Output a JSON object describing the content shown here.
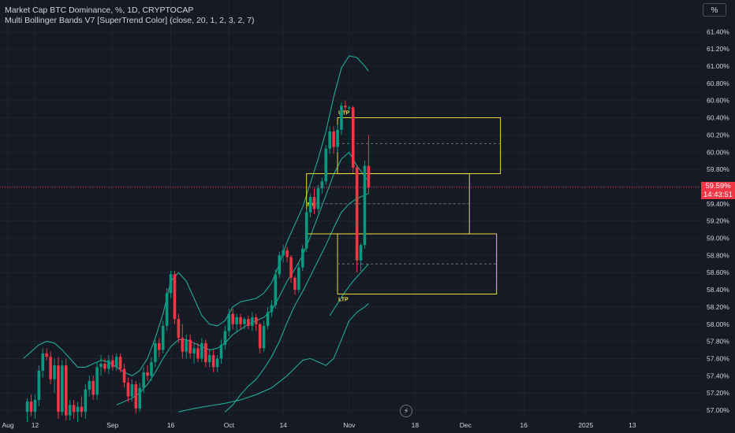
{
  "legend": {
    "title": "Market Cap BTC Dominance, %, 1D, CRYPTOCAP",
    "indicator": "Multi Bollinger Bands V7 [SuperTrend Color] (close, 20, 1, 2, 3, 2, 7)"
  },
  "toolbar": {
    "scale_button": "%"
  },
  "price_tag": {
    "price": "59.59%",
    "countdown": "14:43:51"
  },
  "colors": {
    "background": "#161a25",
    "up": "#089981",
    "down": "#f23645",
    "band": "#22ab94",
    "zone": "#e8d83a",
    "grid": "#1f2430",
    "axis_text": "#d1d4dc"
  },
  "icons": {
    "bottom": "lightning-icon"
  },
  "chart_data": {
    "type": "candlestick",
    "title": "Market Cap BTC Dominance, %, 1D, CRYPTOCAP",
    "y_unit": "%",
    "ylim": [
      56.95,
      61.5
    ],
    "y_ticks": [
      57.0,
      57.2,
      57.4,
      57.6,
      57.8,
      58.0,
      58.2,
      58.4,
      58.6,
      58.8,
      59.0,
      59.2,
      59.4,
      59.6,
      59.8,
      60.0,
      60.2,
      60.4,
      60.6,
      60.8,
      61.0,
      61.2,
      61.4
    ],
    "y_tick_labels": [
      "57.00%",
      "57.20%",
      "57.40%",
      "57.60%",
      "57.80%",
      "58.00%",
      "58.20%",
      "58.40%",
      "58.60%",
      "58.80%",
      "59.00%",
      "59.20%",
      "59.40%",
      "59.60%",
      "59.80%",
      "60.00%",
      "60.20%",
      "60.40%",
      "60.60%",
      "60.80%",
      "61.00%",
      "61.20%",
      "61.40%"
    ],
    "x_ticks": [
      {
        "label": "Aug",
        "day": 0
      },
      {
        "label": "12",
        "day": 7
      },
      {
        "label": "Sep",
        "day": 27
      },
      {
        "label": "16",
        "day": 42
      },
      {
        "label": "Oct",
        "day": 57
      },
      {
        "label": "14",
        "day": 71
      },
      {
        "label": "Nov",
        "day": 88
      },
      {
        "label": "18",
        "day": 105
      },
      {
        "label": "Dec",
        "day": 118
      },
      {
        "label": "16",
        "day": 133
      },
      {
        "label": "2025",
        "day": 149
      },
      {
        "label": "13",
        "day": 161
      }
    ],
    "candles": [
      {
        "day": 5,
        "o": 56.98,
        "h": 57.14,
        "l": 56.86,
        "c": 57.1
      },
      {
        "day": 6,
        "o": 57.1,
        "h": 57.18,
        "l": 56.93,
        "c": 56.98
      },
      {
        "day": 7,
        "o": 56.98,
        "h": 57.18,
        "l": 56.9,
        "c": 57.12
      },
      {
        "day": 8,
        "o": 57.12,
        "h": 57.52,
        "l": 57.05,
        "c": 57.46
      },
      {
        "day": 9,
        "o": 57.46,
        "h": 57.72,
        "l": 57.38,
        "c": 57.66
      },
      {
        "day": 10,
        "o": 57.66,
        "h": 57.72,
        "l": 57.58,
        "c": 57.62
      },
      {
        "day": 11,
        "o": 57.62,
        "h": 57.68,
        "l": 57.3,
        "c": 57.36
      },
      {
        "day": 12,
        "o": 57.36,
        "h": 57.6,
        "l": 57.2,
        "c": 57.52
      },
      {
        "day": 13,
        "o": 57.52,
        "h": 57.62,
        "l": 56.9,
        "c": 56.98
      },
      {
        "day": 14,
        "o": 56.98,
        "h": 57.58,
        "l": 56.94,
        "c": 57.52
      },
      {
        "day": 15,
        "o": 57.52,
        "h": 57.6,
        "l": 56.88,
        "c": 56.94
      },
      {
        "day": 16,
        "o": 56.94,
        "h": 57.12,
        "l": 56.88,
        "c": 57.06
      },
      {
        "day": 17,
        "o": 57.06,
        "h": 57.12,
        "l": 56.9,
        "c": 56.98
      },
      {
        "day": 18,
        "o": 56.98,
        "h": 57.1,
        "l": 56.86,
        "c": 57.04
      },
      {
        "day": 19,
        "o": 57.04,
        "h": 57.16,
        "l": 56.92,
        "c": 56.98
      },
      {
        "day": 20,
        "o": 56.98,
        "h": 57.3,
        "l": 56.9,
        "c": 57.24
      },
      {
        "day": 21,
        "o": 57.24,
        "h": 57.4,
        "l": 57.16,
        "c": 57.34
      },
      {
        "day": 22,
        "o": 57.34,
        "h": 57.4,
        "l": 57.12,
        "c": 57.18
      },
      {
        "day": 23,
        "o": 57.18,
        "h": 57.56,
        "l": 57.12,
        "c": 57.5
      },
      {
        "day": 24,
        "o": 57.5,
        "h": 57.64,
        "l": 57.4,
        "c": 57.54
      },
      {
        "day": 25,
        "o": 57.54,
        "h": 57.6,
        "l": 57.44,
        "c": 57.48
      },
      {
        "day": 26,
        "o": 57.48,
        "h": 57.64,
        "l": 57.42,
        "c": 57.58
      },
      {
        "day": 27,
        "o": 57.58,
        "h": 57.64,
        "l": 57.46,
        "c": 57.5
      },
      {
        "day": 28,
        "o": 57.5,
        "h": 57.66,
        "l": 57.46,
        "c": 57.62
      },
      {
        "day": 29,
        "o": 57.62,
        "h": 57.66,
        "l": 57.44,
        "c": 57.48
      },
      {
        "day": 30,
        "o": 57.48,
        "h": 57.54,
        "l": 57.26,
        "c": 57.32
      },
      {
        "day": 31,
        "o": 57.32,
        "h": 57.38,
        "l": 57.1,
        "c": 57.16
      },
      {
        "day": 32,
        "o": 57.16,
        "h": 57.36,
        "l": 57.1,
        "c": 57.3
      },
      {
        "day": 33,
        "o": 57.3,
        "h": 57.34,
        "l": 56.96,
        "c": 57.02
      },
      {
        "day": 34,
        "o": 57.02,
        "h": 57.32,
        "l": 56.98,
        "c": 57.26
      },
      {
        "day": 35,
        "o": 57.26,
        "h": 57.5,
        "l": 57.2,
        "c": 57.44
      },
      {
        "day": 36,
        "o": 57.44,
        "h": 57.52,
        "l": 57.34,
        "c": 57.4
      },
      {
        "day": 37,
        "o": 57.4,
        "h": 57.62,
        "l": 57.34,
        "c": 57.56
      },
      {
        "day": 38,
        "o": 57.56,
        "h": 57.82,
        "l": 57.5,
        "c": 57.78
      },
      {
        "day": 39,
        "o": 57.78,
        "h": 57.84,
        "l": 57.62,
        "c": 57.7
      },
      {
        "day": 40,
        "o": 57.7,
        "h": 58.04,
        "l": 57.66,
        "c": 57.98
      },
      {
        "day": 41,
        "o": 57.98,
        "h": 58.42,
        "l": 57.92,
        "c": 58.36
      },
      {
        "day": 42,
        "o": 58.36,
        "h": 58.62,
        "l": 58.3,
        "c": 58.58
      },
      {
        "day": 43,
        "o": 58.58,
        "h": 58.62,
        "l": 58.0,
        "c": 58.06
      },
      {
        "day": 44,
        "o": 58.06,
        "h": 58.12,
        "l": 57.78,
        "c": 57.84
      },
      {
        "day": 45,
        "o": 57.84,
        "h": 58.0,
        "l": 57.6,
        "c": 57.68
      },
      {
        "day": 46,
        "o": 57.68,
        "h": 57.88,
        "l": 57.6,
        "c": 57.82
      },
      {
        "day": 47,
        "o": 57.82,
        "h": 57.88,
        "l": 57.6,
        "c": 57.66
      },
      {
        "day": 48,
        "o": 57.66,
        "h": 57.78,
        "l": 57.54,
        "c": 57.72
      },
      {
        "day": 49,
        "o": 57.72,
        "h": 57.78,
        "l": 57.56,
        "c": 57.6
      },
      {
        "day": 50,
        "o": 57.6,
        "h": 57.84,
        "l": 57.56,
        "c": 57.78
      },
      {
        "day": 51,
        "o": 57.78,
        "h": 57.82,
        "l": 57.5,
        "c": 57.56
      },
      {
        "day": 52,
        "o": 57.56,
        "h": 57.7,
        "l": 57.5,
        "c": 57.64
      },
      {
        "day": 53,
        "o": 57.64,
        "h": 57.7,
        "l": 57.44,
        "c": 57.5
      },
      {
        "day": 54,
        "o": 57.5,
        "h": 57.64,
        "l": 57.44,
        "c": 57.6
      },
      {
        "day": 55,
        "o": 57.6,
        "h": 57.82,
        "l": 57.54,
        "c": 57.76
      },
      {
        "day": 56,
        "o": 57.76,
        "h": 57.98,
        "l": 57.7,
        "c": 57.92
      },
      {
        "day": 57,
        "o": 57.92,
        "h": 58.18,
        "l": 57.86,
        "c": 58.12
      },
      {
        "day": 58,
        "o": 58.12,
        "h": 58.18,
        "l": 57.94,
        "c": 58.0
      },
      {
        "day": 59,
        "o": 58.0,
        "h": 58.12,
        "l": 57.9,
        "c": 58.08
      },
      {
        "day": 60,
        "o": 58.08,
        "h": 58.12,
        "l": 57.94,
        "c": 58.0
      },
      {
        "day": 61,
        "o": 58.0,
        "h": 58.08,
        "l": 57.94,
        "c": 58.06
      },
      {
        "day": 62,
        "o": 58.06,
        "h": 58.1,
        "l": 57.94,
        "c": 57.98
      },
      {
        "day": 63,
        "o": 57.98,
        "h": 58.14,
        "l": 57.92,
        "c": 58.08
      },
      {
        "day": 64,
        "o": 58.08,
        "h": 58.12,
        "l": 57.92,
        "c": 58.0
      },
      {
        "day": 65,
        "o": 58.0,
        "h": 58.02,
        "l": 57.66,
        "c": 57.72
      },
      {
        "day": 66,
        "o": 57.72,
        "h": 58.04,
        "l": 57.68,
        "c": 57.98
      },
      {
        "day": 67,
        "o": 57.98,
        "h": 58.2,
        "l": 57.94,
        "c": 58.14
      },
      {
        "day": 68,
        "o": 58.14,
        "h": 58.28,
        "l": 58.08,
        "c": 58.22
      },
      {
        "day": 69,
        "o": 58.22,
        "h": 58.64,
        "l": 58.18,
        "c": 58.58
      },
      {
        "day": 70,
        "o": 58.58,
        "h": 58.84,
        "l": 58.54,
        "c": 58.8
      },
      {
        "day": 71,
        "o": 58.8,
        "h": 58.92,
        "l": 58.72,
        "c": 58.86
      },
      {
        "day": 72,
        "o": 58.86,
        "h": 58.9,
        "l": 58.72,
        "c": 58.78
      },
      {
        "day": 73,
        "o": 58.78,
        "h": 58.8,
        "l": 58.48,
        "c": 58.54
      },
      {
        "day": 74,
        "o": 58.54,
        "h": 58.56,
        "l": 58.34,
        "c": 58.4
      },
      {
        "day": 75,
        "o": 58.4,
        "h": 58.72,
        "l": 58.36,
        "c": 58.66
      },
      {
        "day": 76,
        "o": 58.66,
        "h": 58.92,
        "l": 58.62,
        "c": 58.88
      },
      {
        "day": 77,
        "o": 58.88,
        "h": 59.34,
        "l": 58.84,
        "c": 59.3
      },
      {
        "day": 78,
        "o": 59.3,
        "h": 59.52,
        "l": 59.24,
        "c": 59.48
      },
      {
        "day": 79,
        "o": 59.48,
        "h": 59.58,
        "l": 59.28,
        "c": 59.34
      },
      {
        "day": 80,
        "o": 59.34,
        "h": 59.62,
        "l": 59.3,
        "c": 59.58
      },
      {
        "day": 81,
        "o": 59.58,
        "h": 59.7,
        "l": 59.52,
        "c": 59.66
      },
      {
        "day": 82,
        "o": 59.66,
        "h": 60.08,
        "l": 59.62,
        "c": 60.04
      },
      {
        "day": 83,
        "o": 60.04,
        "h": 60.3,
        "l": 59.98,
        "c": 60.24
      },
      {
        "day": 84,
        "o": 60.24,
        "h": 60.3,
        "l": 59.98,
        "c": 60.06
      },
      {
        "day": 85,
        "o": 60.06,
        "h": 60.32,
        "l": 60.0,
        "c": 60.26
      },
      {
        "day": 86,
        "o": 60.26,
        "h": 60.58,
        "l": 60.2,
        "c": 60.54
      },
      {
        "day": 87,
        "o": 60.54,
        "h": 60.6,
        "l": 60.46,
        "c": 60.52
      },
      {
        "day": 88,
        "o": 60.52,
        "h": 60.54,
        "l": 60.48,
        "c": 60.52
      },
      {
        "day": 89,
        "o": 60.52,
        "h": 60.54,
        "l": 59.76,
        "c": 59.82
      },
      {
        "day": 90,
        "o": 59.82,
        "h": 59.84,
        "l": 58.6,
        "c": 58.74
      },
      {
        "day": 91,
        "o": 58.74,
        "h": 58.94,
        "l": 58.62,
        "c": 58.92
      },
      {
        "day": 92,
        "o": 58.92,
        "h": 59.9,
        "l": 58.88,
        "c": 59.84
      },
      {
        "day": 93,
        "o": 59.84,
        "h": 60.2,
        "l": 59.52,
        "c": 59.59
      }
    ],
    "band_upper_outer": [
      [
        4,
        57.6
      ],
      [
        6,
        57.68
      ],
      [
        8,
        57.76
      ],
      [
        10,
        57.8
      ],
      [
        12,
        57.78
      ],
      [
        14,
        57.7
      ],
      [
        16,
        57.6
      ],
      [
        18,
        57.5
      ],
      [
        20,
        57.5
      ],
      [
        22,
        57.54
      ],
      [
        24,
        57.58
      ],
      [
        26,
        57.56
      ],
      [
        28,
        57.5
      ],
      [
        30,
        57.44
      ],
      [
        32,
        57.4
      ],
      [
        34,
        57.46
      ],
      [
        36,
        57.6
      ],
      [
        38,
        57.84
      ],
      [
        40,
        58.12
      ],
      [
        42,
        58.5
      ],
      [
        44,
        58.6
      ],
      [
        46,
        58.5
      ],
      [
        48,
        58.3
      ],
      [
        50,
        58.1
      ],
      [
        52,
        58.0
      ],
      [
        54,
        57.98
      ],
      [
        56,
        58.04
      ],
      [
        58,
        58.2
      ],
      [
        60,
        58.26
      ],
      [
        62,
        58.28
      ],
      [
        64,
        58.3
      ],
      [
        66,
        58.36
      ],
      [
        68,
        58.48
      ],
      [
        70,
        58.7
      ],
      [
        72,
        58.96
      ],
      [
        74,
        59.16
      ],
      [
        76,
        59.36
      ],
      [
        78,
        59.64
      ],
      [
        80,
        59.92
      ],
      [
        82,
        60.24
      ],
      [
        84,
        60.64
      ],
      [
        86,
        60.98
      ],
      [
        88,
        61.12
      ],
      [
        90,
        61.1
      ],
      [
        92,
        61.0
      ],
      [
        93,
        60.94
      ]
    ],
    "band_upper_inner": [
      [
        28,
        57.06
      ],
      [
        30,
        57.1
      ],
      [
        32,
        57.14
      ],
      [
        34,
        57.2
      ],
      [
        36,
        57.3
      ],
      [
        38,
        57.44
      ],
      [
        40,
        57.6
      ],
      [
        42,
        57.74
      ],
      [
        44,
        57.82
      ],
      [
        46,
        57.82
      ],
      [
        48,
        57.78
      ],
      [
        50,
        57.74
      ],
      [
        52,
        57.7
      ],
      [
        54,
        57.72
      ],
      [
        56,
        57.78
      ],
      [
        58,
        57.88
      ],
      [
        60,
        57.94
      ],
      [
        62,
        58.0
      ],
      [
        64,
        58.04
      ],
      [
        66,
        58.08
      ],
      [
        68,
        58.16
      ],
      [
        70,
        58.32
      ],
      [
        72,
        58.5
      ],
      [
        74,
        58.64
      ],
      [
        76,
        58.8
      ],
      [
        78,
        59.02
      ],
      [
        80,
        59.26
      ],
      [
        82,
        59.5
      ],
      [
        84,
        59.74
      ],
      [
        86,
        59.92
      ],
      [
        88,
        60.0
      ],
      [
        90,
        59.84
      ],
      [
        92,
        59.72
      ],
      [
        93,
        59.66
      ]
    ],
    "band_lower_inner": [
      [
        56,
        56.98
      ],
      [
        58,
        57.06
      ],
      [
        60,
        57.18
      ],
      [
        62,
        57.28
      ],
      [
        64,
        57.36
      ],
      [
        66,
        57.48
      ],
      [
        68,
        57.62
      ],
      [
        70,
        57.8
      ],
      [
        72,
        58.02
      ],
      [
        74,
        58.22
      ],
      [
        76,
        58.38
      ],
      [
        78,
        58.56
      ],
      [
        80,
        58.74
      ],
      [
        82,
        58.92
      ],
      [
        84,
        59.12
      ],
      [
        86,
        59.3
      ],
      [
        88,
        59.4
      ],
      [
        90,
        59.46
      ],
      [
        92,
        59.5
      ],
      [
        93,
        59.52
      ]
    ],
    "band_lower_deep": [
      [
        83,
        58.1
      ],
      [
        85,
        58.24
      ],
      [
        87,
        58.38
      ],
      [
        89,
        58.5
      ],
      [
        91,
        58.6
      ],
      [
        93,
        58.7
      ]
    ],
    "band_lower_outer": [
      [
        44,
        56.98
      ],
      [
        46,
        57.0
      ],
      [
        48,
        57.02
      ],
      [
        52,
        57.05
      ],
      [
        56,
        57.08
      ],
      [
        60,
        57.12
      ],
      [
        64,
        57.18
      ],
      [
        68,
        57.26
      ],
      [
        72,
        57.4
      ],
      [
        76,
        57.58
      ],
      [
        78,
        57.6
      ],
      [
        80,
        57.56
      ],
      [
        82,
        57.52
      ],
      [
        84,
        57.6
      ],
      [
        86,
        57.82
      ],
      [
        88,
        58.04
      ],
      [
        90,
        58.14
      ],
      [
        92,
        58.2
      ],
      [
        93,
        58.24
      ]
    ],
    "zones": [
      {
        "label": "UTP",
        "day_start": 85,
        "day_end": 127,
        "top": 60.4,
        "bottom": 59.75,
        "mid": 60.1
      },
      {
        "label": "MC",
        "day_start": 77,
        "day_end": 119,
        "top": 59.75,
        "bottom": 59.05,
        "mid": 59.4
      },
      {
        "label": "LTP",
        "day_start": 85,
        "day_end": 126,
        "top": 59.05,
        "bottom": 58.35,
        "mid": 58.7
      }
    ],
    "current_price": 59.59,
    "grid": true
  }
}
